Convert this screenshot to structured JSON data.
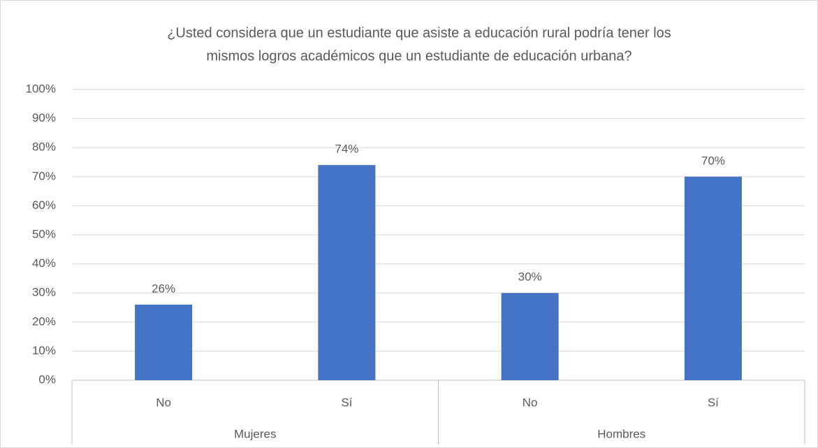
{
  "chart_data": {
    "type": "bar",
    "title": [
      "¿Usted considera que un estudiante que asiste a educación rural podría tener los",
      "mismos logros académicos que un estudiante de educación urbana?"
    ],
    "categories": [
      "No",
      "Sí",
      "No",
      "Sí"
    ],
    "groups": [
      "Mujeres",
      "Hombres"
    ],
    "values": [
      26,
      74,
      30,
      70
    ],
    "value_labels": [
      "26%",
      "74%",
      "30%",
      "70%"
    ],
    "color": "#4472c4",
    "ylim": [
      0,
      100
    ],
    "yticks": [
      {
        "value": 0,
        "label": "0%"
      },
      {
        "value": 10,
        "label": "10%"
      },
      {
        "value": 20,
        "label": "20%"
      },
      {
        "value": 30,
        "label": "30%"
      },
      {
        "value": 40,
        "label": "40%"
      },
      {
        "value": 50,
        "label": "50%"
      },
      {
        "value": 60,
        "label": "60%"
      },
      {
        "value": 70,
        "label": "70%"
      },
      {
        "value": 80,
        "label": "80%"
      },
      {
        "value": 90,
        "label": "90%"
      },
      {
        "value": 100,
        "label": "100%"
      }
    ],
    "grid": true
  }
}
